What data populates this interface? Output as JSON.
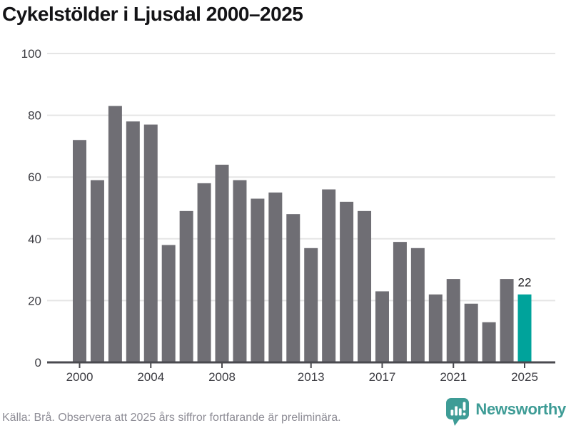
{
  "header": {
    "title": "Cykelstölder i Ljusdal 2000–2025"
  },
  "chart_data": {
    "type": "bar",
    "title": "Cykelstölder i Ljusdal 2000–2025",
    "x": [
      2000,
      2001,
      2002,
      2003,
      2004,
      2005,
      2006,
      2007,
      2008,
      2009,
      2010,
      2011,
      2012,
      2013,
      2014,
      2015,
      2016,
      2017,
      2018,
      2019,
      2020,
      2021,
      2022,
      2023,
      2024,
      2025
    ],
    "values": [
      72,
      59,
      83,
      78,
      77,
      38,
      49,
      58,
      64,
      59,
      53,
      55,
      48,
      37,
      56,
      52,
      49,
      23,
      39,
      37,
      22,
      27,
      19,
      13,
      27,
      22
    ],
    "ylim": [
      0,
      100
    ],
    "yticks": [
      0,
      20,
      40,
      60,
      80,
      100
    ],
    "xticks": [
      2000,
      2004,
      2008,
      2013,
      2017,
      2021,
      2025
    ],
    "grid": "horizontal",
    "legend": "none",
    "bar_color": "#6f6e74",
    "highlight": {
      "year": 2025,
      "color": "#00a39b"
    },
    "value_label": {
      "year": 2025,
      "text": "22"
    },
    "colors": {
      "grid": "#e5e5e5",
      "axis": "#4a4a4f",
      "tick_label": "#3c3c42",
      "value_label": "#232327"
    }
  },
  "footer": {
    "source": "Källa: Brå. Observera att 2025 års siffror fortfarande är preliminära."
  },
  "brand": {
    "name": "Newsworthy",
    "color": "#3e9c96"
  }
}
